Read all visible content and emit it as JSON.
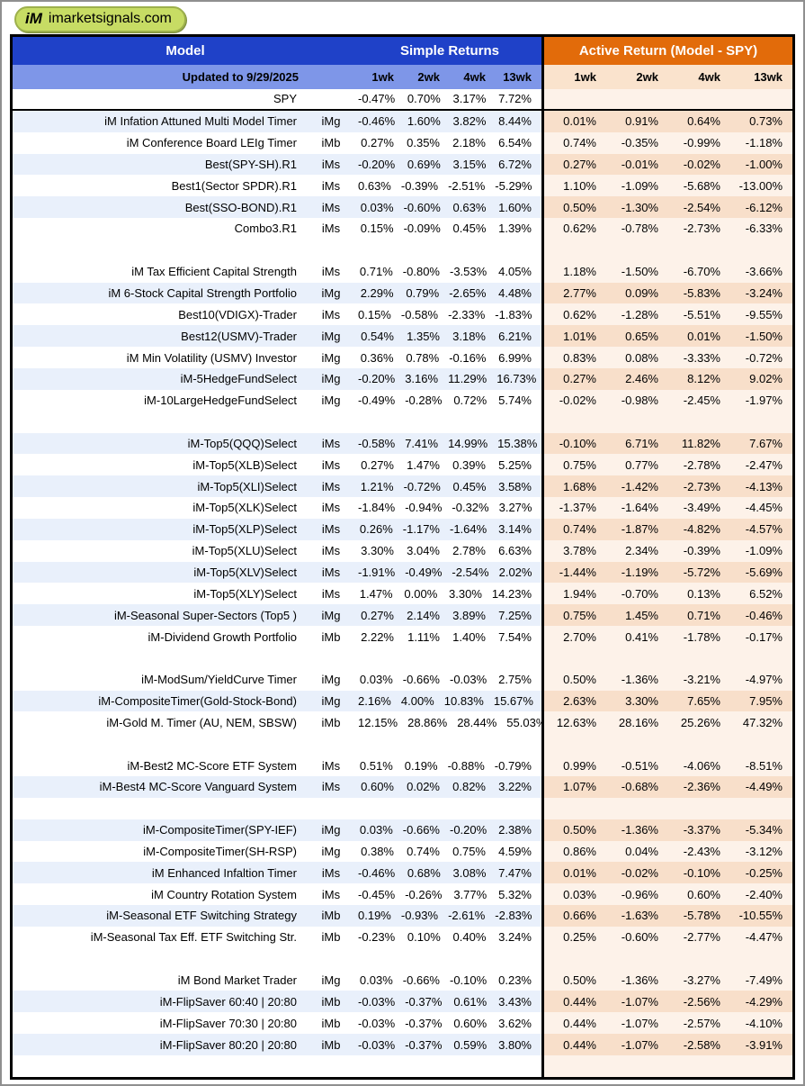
{
  "site": {
    "logo_prefix": "iM",
    "logo_text": "imarketsignals.com"
  },
  "header": {
    "model_label": "Model",
    "simple_returns_label": "Simple Returns",
    "active_return_label": "Active Return (Model - SPY)",
    "updated_label": "Updated to 9/29/2025",
    "simple_periods": [
      "1wk",
      "2wk",
      "4wk",
      "13wk"
    ],
    "active_periods": [
      "1wk",
      "2wk",
      "4wk",
      "13wk"
    ]
  },
  "colors": {
    "header_blue": "#1f41c8",
    "header_orange": "#e26b0a",
    "subheader_blue": "#7e96e8",
    "subheader_peach": "#fae3cd",
    "stripe_blue": "#e9f0fb",
    "right_light": "#fdf2e9",
    "right_stripe": "#f8dfca",
    "logo_green": "#c7dc64"
  },
  "table": {
    "rows": [
      {
        "name": "SPY",
        "tag": "",
        "simple": [
          "-0.47%",
          "0.70%",
          "3.17%",
          "7.72%"
        ],
        "active": [
          "",
          "",
          "",
          ""
        ],
        "shaded": false,
        "sep": true
      },
      {
        "name": "iM Infation Attuned Multi Model  Timer",
        "tag": "iMg",
        "simple": [
          "-0.46%",
          "1.60%",
          "3.82%",
          "8.44%"
        ],
        "active": [
          "0.01%",
          "0.91%",
          "0.64%",
          "0.73%"
        ],
        "shaded": true
      },
      {
        "name": "iM Conference Board LEIg Timer",
        "tag": "iMb",
        "simple": [
          "0.27%",
          "0.35%",
          "2.18%",
          "6.54%"
        ],
        "active": [
          "0.74%",
          "-0.35%",
          "-0.99%",
          "-1.18%"
        ],
        "shaded": false
      },
      {
        "name": "Best(SPY-SH).R1",
        "tag": "iMs",
        "simple": [
          "-0.20%",
          "0.69%",
          "3.15%",
          "6.72%"
        ],
        "active": [
          "0.27%",
          "-0.01%",
          "-0.02%",
          "-1.00%"
        ],
        "shaded": true
      },
      {
        "name": "Best1(Sector SPDR).R1",
        "tag": "iMs",
        "simple": [
          "0.63%",
          "-0.39%",
          "-2.51%",
          "-5.29%"
        ],
        "active": [
          "1.10%",
          "-1.09%",
          "-5.68%",
          "-13.00%"
        ],
        "shaded": false
      },
      {
        "name": "Best(SSO-BOND).R1",
        "tag": "iMs",
        "simple": [
          "0.03%",
          "-0.60%",
          "0.63%",
          "1.60%"
        ],
        "active": [
          "0.50%",
          "-1.30%",
          "-2.54%",
          "-6.12%"
        ],
        "shaded": true
      },
      {
        "name": "Combo3.R1",
        "tag": "iMs",
        "simple": [
          "0.15%",
          "-0.09%",
          "0.45%",
          "1.39%"
        ],
        "active": [
          "0.62%",
          "-0.78%",
          "-2.73%",
          "-6.33%"
        ],
        "shaded": false
      },
      {
        "blank": true
      },
      {
        "name": "iM Tax Efficient Capital Strength",
        "tag": "iMs",
        "simple": [
          "0.71%",
          "-0.80%",
          "-3.53%",
          "4.05%"
        ],
        "active": [
          "1.18%",
          "-1.50%",
          "-6.70%",
          "-3.66%"
        ],
        "shaded": false
      },
      {
        "name": "iM 6-Stock Capital Strength Portfolio",
        "tag": "iMg",
        "simple": [
          "2.29%",
          "0.79%",
          "-2.65%",
          "4.48%"
        ],
        "active": [
          "2.77%",
          "0.09%",
          "-5.83%",
          "-3.24%"
        ],
        "shaded": true
      },
      {
        "name": "Best10(VDIGX)-Trader",
        "tag": "iMs",
        "simple": [
          "0.15%",
          "-0.58%",
          "-2.33%",
          "-1.83%"
        ],
        "active": [
          "0.62%",
          "-1.28%",
          "-5.51%",
          "-9.55%"
        ],
        "shaded": false
      },
      {
        "name": "Best12(USMV)-Trader",
        "tag": "iMg",
        "simple": [
          "0.54%",
          "1.35%",
          "3.18%",
          "6.21%"
        ],
        "active": [
          "1.01%",
          "0.65%",
          "0.01%",
          "-1.50%"
        ],
        "shaded": true
      },
      {
        "name": "iM Min Volatility (USMV) Investor",
        "tag": "iMg",
        "simple": [
          "0.36%",
          "0.78%",
          "-0.16%",
          "6.99%"
        ],
        "active": [
          "0.83%",
          "0.08%",
          "-3.33%",
          "-0.72%"
        ],
        "shaded": false
      },
      {
        "name": "iM-5HedgeFundSelect",
        "tag": "iMg",
        "simple": [
          "-0.20%",
          "3.16%",
          "11.29%",
          "16.73%"
        ],
        "active": [
          "0.27%",
          "2.46%",
          "8.12%",
          "9.02%"
        ],
        "shaded": true
      },
      {
        "name": "iM-10LargeHedgeFundSelect",
        "tag": "iMg",
        "simple": [
          "-0.49%",
          "-0.28%",
          "0.72%",
          "5.74%"
        ],
        "active": [
          "-0.02%",
          "-0.98%",
          "-2.45%",
          "-1.97%"
        ],
        "shaded": false
      },
      {
        "blank": true
      },
      {
        "name": "iM-Top5(QQQ)Select",
        "tag": "iMs",
        "simple": [
          "-0.58%",
          "7.41%",
          "14.99%",
          "15.38%"
        ],
        "active": [
          "-0.10%",
          "6.71%",
          "11.82%",
          "7.67%"
        ],
        "shaded": true
      },
      {
        "name": "iM-Top5(XLB)Select",
        "tag": "iMs",
        "simple": [
          "0.27%",
          "1.47%",
          "0.39%",
          "5.25%"
        ],
        "active": [
          "0.75%",
          "0.77%",
          "-2.78%",
          "-2.47%"
        ],
        "shaded": false
      },
      {
        "name": "iM-Top5(XLI)Select",
        "tag": "iMs",
        "simple": [
          "1.21%",
          "-0.72%",
          "0.45%",
          "3.58%"
        ],
        "active": [
          "1.68%",
          "-1.42%",
          "-2.73%",
          "-4.13%"
        ],
        "shaded": true
      },
      {
        "name": "iM-Top5(XLK)Select",
        "tag": "iMs",
        "simple": [
          "-1.84%",
          "-0.94%",
          "-0.32%",
          "3.27%"
        ],
        "active": [
          "-1.37%",
          "-1.64%",
          "-3.49%",
          "-4.45%"
        ],
        "shaded": false
      },
      {
        "name": "iM-Top5(XLP)Select",
        "tag": "iMs",
        "simple": [
          "0.26%",
          "-1.17%",
          "-1.64%",
          "3.14%"
        ],
        "active": [
          "0.74%",
          "-1.87%",
          "-4.82%",
          "-4.57%"
        ],
        "shaded": true
      },
      {
        "name": "iM-Top5(XLU)Select",
        "tag": "iMs",
        "simple": [
          "3.30%",
          "3.04%",
          "2.78%",
          "6.63%"
        ],
        "active": [
          "3.78%",
          "2.34%",
          "-0.39%",
          "-1.09%"
        ],
        "shaded": false
      },
      {
        "name": "iM-Top5(XLV)Select",
        "tag": "iMs",
        "simple": [
          "-1.91%",
          "-0.49%",
          "-2.54%",
          "2.02%"
        ],
        "active": [
          "-1.44%",
          "-1.19%",
          "-5.72%",
          "-5.69%"
        ],
        "shaded": true
      },
      {
        "name": "iM-Top5(XLY)Select",
        "tag": "iMs",
        "simple": [
          "1.47%",
          "0.00%",
          "3.30%",
          "14.23%"
        ],
        "active": [
          "1.94%",
          "-0.70%",
          "0.13%",
          "6.52%"
        ],
        "shaded": false
      },
      {
        "name": "iM-Seasonal Super-Sectors (Top5 )",
        "tag": "iMg",
        "simple": [
          "0.27%",
          "2.14%",
          "3.89%",
          "7.25%"
        ],
        "active": [
          "0.75%",
          "1.45%",
          "0.71%",
          "-0.46%"
        ],
        "shaded": true
      },
      {
        "name": "iM-Dividend Growth Portfolio",
        "tag": "iMb",
        "simple": [
          "2.22%",
          "1.11%",
          "1.40%",
          "7.54%"
        ],
        "active": [
          "2.70%",
          "0.41%",
          "-1.78%",
          "-0.17%"
        ],
        "shaded": false
      },
      {
        "blank": true
      },
      {
        "name": "iM-ModSum/YieldCurve Timer",
        "tag": "iMg",
        "simple": [
          "0.03%",
          "-0.66%",
          "-0.03%",
          "2.75%"
        ],
        "active": [
          "0.50%",
          "-1.36%",
          "-3.21%",
          "-4.97%"
        ],
        "shaded": false
      },
      {
        "name": "iM-CompositeTimer(Gold-Stock-Bond)",
        "tag": "iMg",
        "simple": [
          "2.16%",
          "4.00%",
          "10.83%",
          "15.67%"
        ],
        "active": [
          "2.63%",
          "3.30%",
          "7.65%",
          "7.95%"
        ],
        "shaded": true
      },
      {
        "name": "iM-Gold M. Timer (AU, NEM, SBSW)",
        "tag": "iMb",
        "simple": [
          "12.15%",
          "28.86%",
          "28.44%",
          "55.03%"
        ],
        "active": [
          "12.63%",
          "28.16%",
          "25.26%",
          "47.32%"
        ],
        "shaded": false
      },
      {
        "blank": true
      },
      {
        "name": "iM-Best2 MC-Score ETF System",
        "tag": "iMs",
        "simple": [
          "0.51%",
          "0.19%",
          "-0.88%",
          "-0.79%"
        ],
        "active": [
          "0.99%",
          "-0.51%",
          "-4.06%",
          "-8.51%"
        ],
        "shaded": false
      },
      {
        "name": "iM-Best4 MC-Score Vanguard System",
        "tag": "iMs",
        "simple": [
          "0.60%",
          "0.02%",
          "0.82%",
          "3.22%"
        ],
        "active": [
          "1.07%",
          "-0.68%",
          "-2.36%",
          "-4.49%"
        ],
        "shaded": true
      },
      {
        "blank": true
      },
      {
        "name": "iM-CompositeTimer(SPY-IEF)",
        "tag": "iMg",
        "simple": [
          "0.03%",
          "-0.66%",
          "-0.20%",
          "2.38%"
        ],
        "active": [
          "0.50%",
          "-1.36%",
          "-3.37%",
          "-5.34%"
        ],
        "shaded": true
      },
      {
        "name": "iM-CompositeTimer(SH-RSP)",
        "tag": "iMg",
        "simple": [
          "0.38%",
          "0.74%",
          "0.75%",
          "4.59%"
        ],
        "active": [
          "0.86%",
          "0.04%",
          "-2.43%",
          "-3.12%"
        ],
        "shaded": false
      },
      {
        "name": "iM Enhanced Infaltion Timer",
        "tag": "iMs",
        "simple": [
          "-0.46%",
          "0.68%",
          "3.08%",
          "7.47%"
        ],
        "active": [
          "0.01%",
          "-0.02%",
          "-0.10%",
          "-0.25%"
        ],
        "shaded": true
      },
      {
        "name": "iM Country Rotation System",
        "tag": "iMs",
        "simple": [
          "-0.45%",
          "-0.26%",
          "3.77%",
          "5.32%"
        ],
        "active": [
          "0.03%",
          "-0.96%",
          "0.60%",
          "-2.40%"
        ],
        "shaded": false
      },
      {
        "name": "iM-Seasonal ETF Switching Strategy",
        "tag": "iMb",
        "simple": [
          "0.19%",
          "-0.93%",
          "-2.61%",
          "-2.83%"
        ],
        "active": [
          "0.66%",
          "-1.63%",
          "-5.78%",
          "-10.55%"
        ],
        "shaded": true
      },
      {
        "name": "iM-Seasonal Tax Eff. ETF Switching Str.",
        "tag": "iMb",
        "simple": [
          "-0.23%",
          "0.10%",
          "0.40%",
          "3.24%"
        ],
        "active": [
          "0.25%",
          "-0.60%",
          "-2.77%",
          "-4.47%"
        ],
        "shaded": false
      },
      {
        "blank": true
      },
      {
        "name": "iM Bond Market Trader",
        "tag": "iMg",
        "simple": [
          "0.03%",
          "-0.66%",
          "-0.10%",
          "0.23%"
        ],
        "active": [
          "0.50%",
          "-1.36%",
          "-3.27%",
          "-7.49%"
        ],
        "shaded": false
      },
      {
        "name": "iM-FlipSaver 60:40 | 20:80",
        "tag": "iMb",
        "simple": [
          "-0.03%",
          "-0.37%",
          "0.61%",
          "3.43%"
        ],
        "active": [
          "0.44%",
          "-1.07%",
          "-2.56%",
          "-4.29%"
        ],
        "shaded": true
      },
      {
        "name": "iM-FlipSaver 70:30 | 20:80",
        "tag": "iMb",
        "simple": [
          "-0.03%",
          "-0.37%",
          "0.60%",
          "3.62%"
        ],
        "active": [
          "0.44%",
          "-1.07%",
          "-2.57%",
          "-4.10%"
        ],
        "shaded": false
      },
      {
        "name": "iM-FlipSaver 80:20 | 20:80",
        "tag": "iMb",
        "simple": [
          "-0.03%",
          "-0.37%",
          "0.59%",
          "3.80%"
        ],
        "active": [
          "0.44%",
          "-1.07%",
          "-2.58%",
          "-3.91%"
        ],
        "shaded": true
      },
      {
        "blank": true
      }
    ]
  }
}
